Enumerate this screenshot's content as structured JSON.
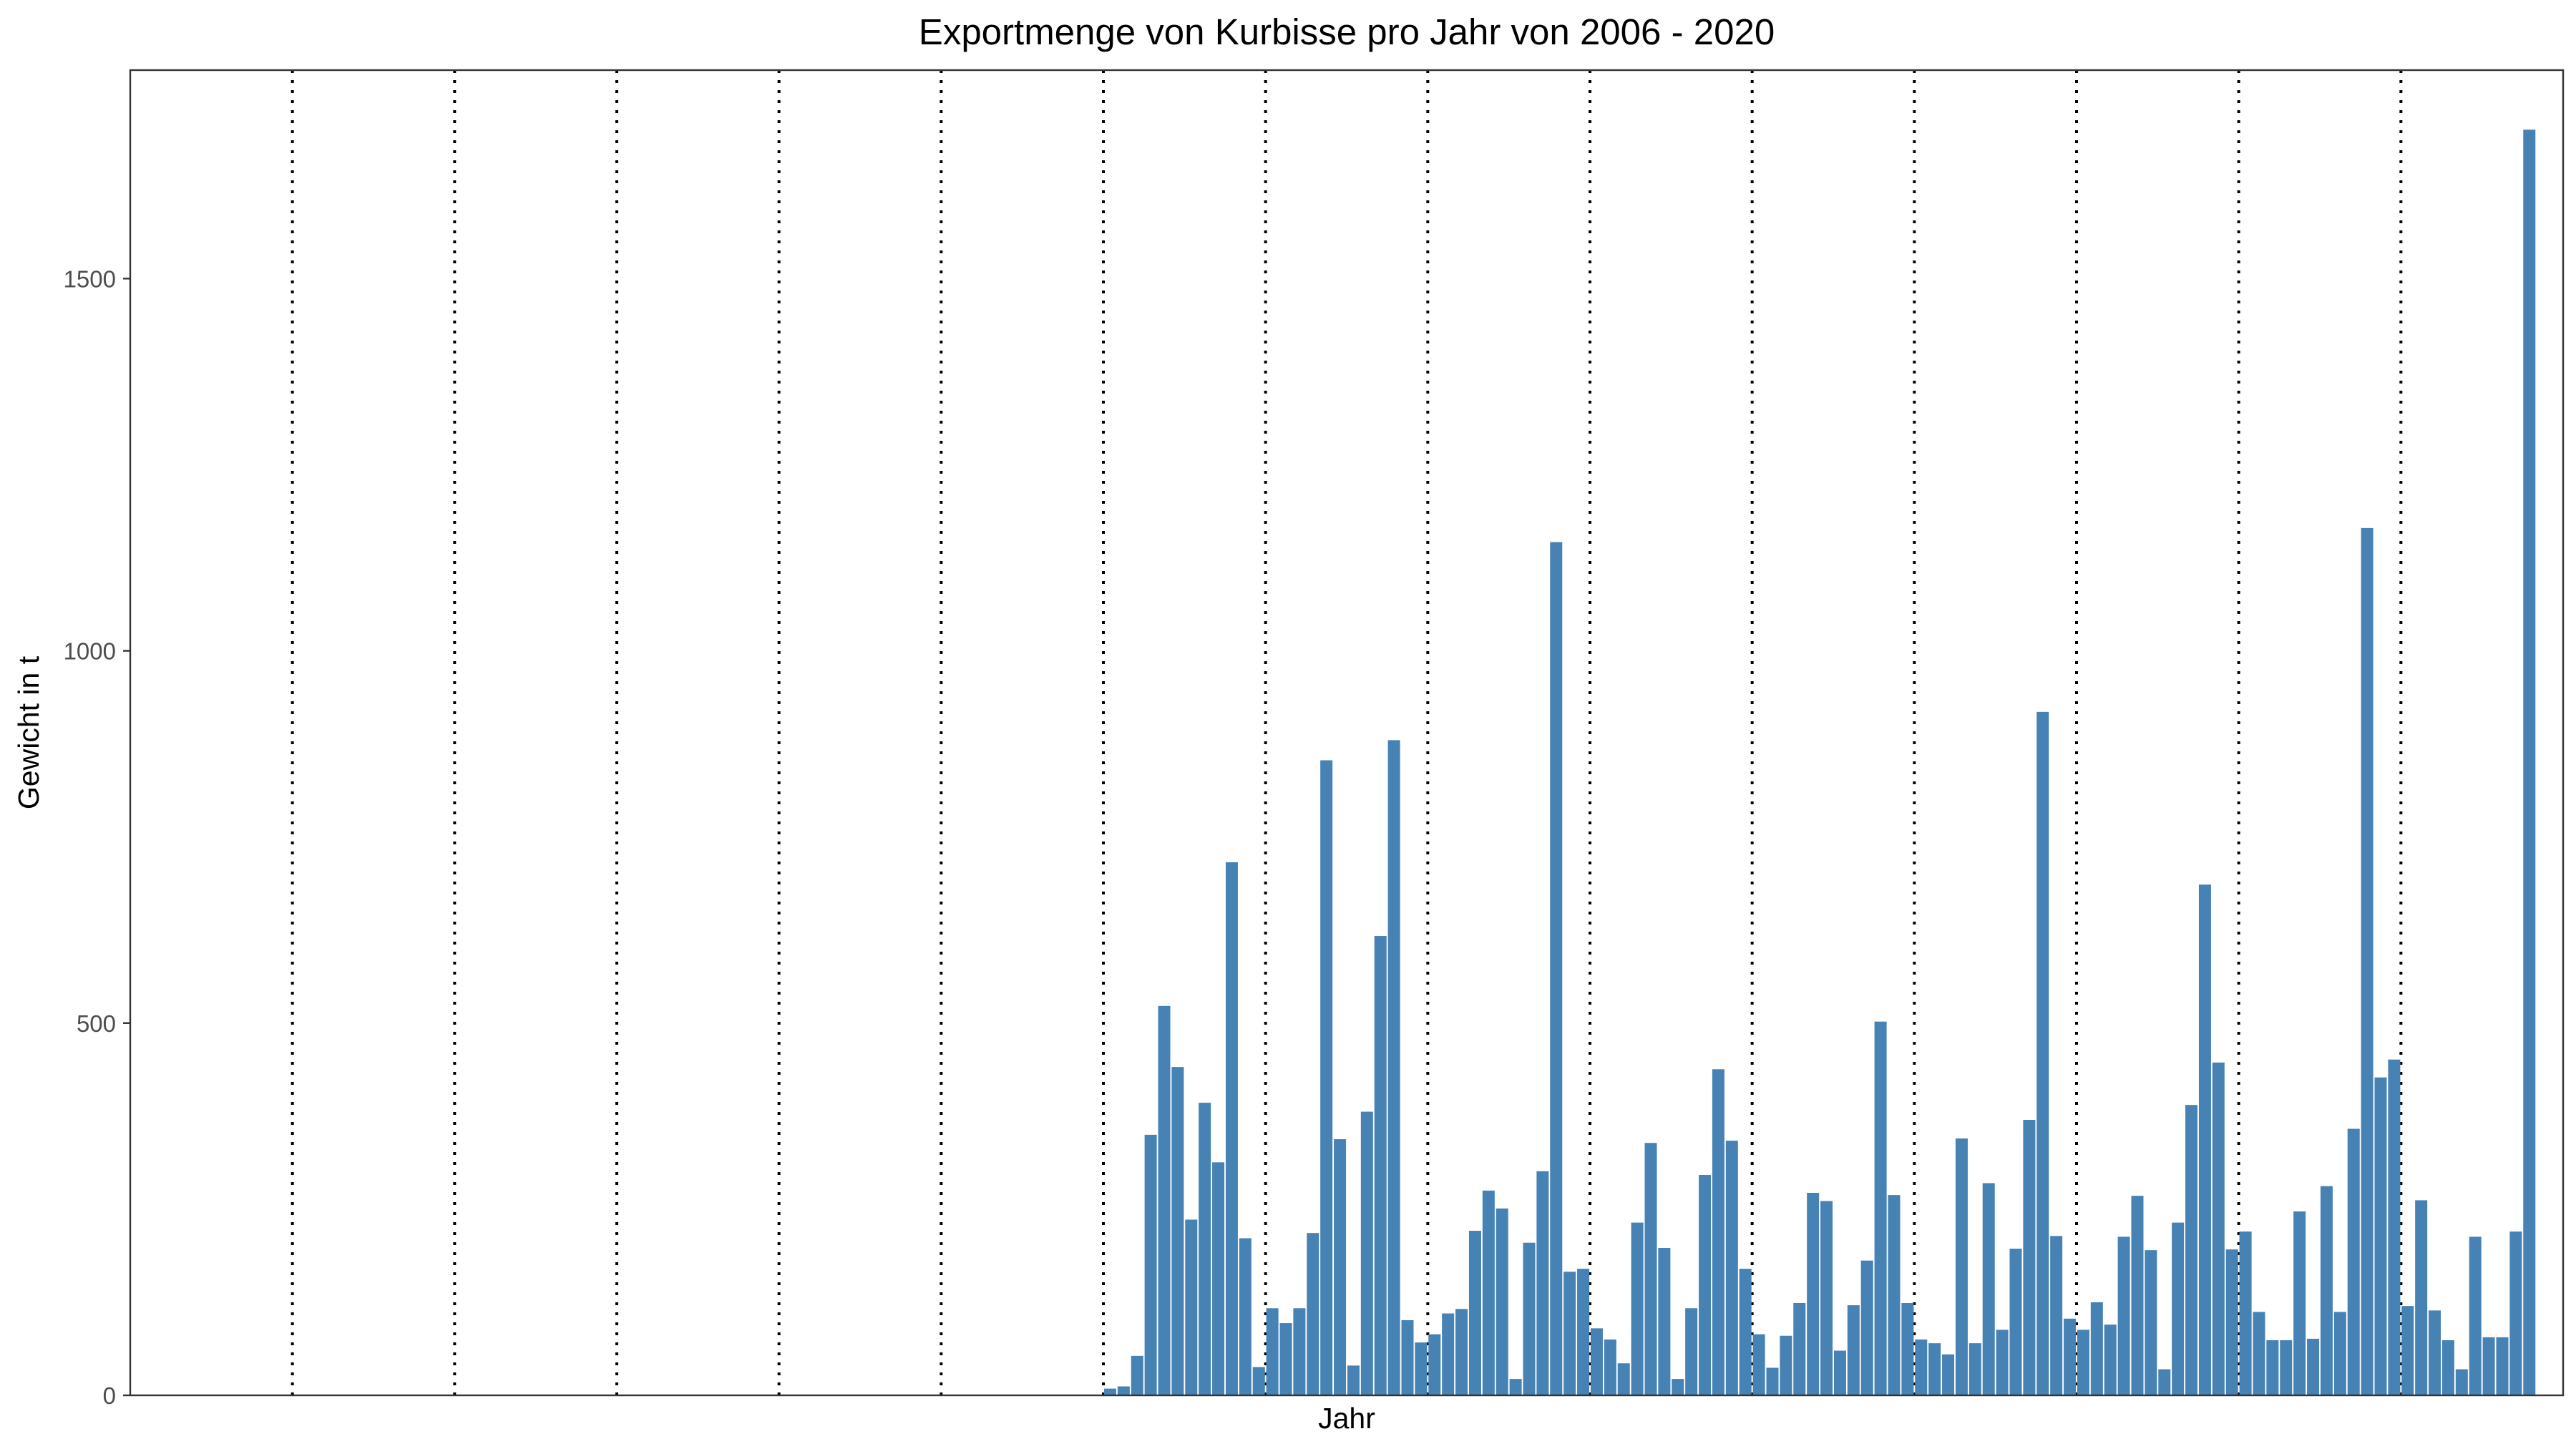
{
  "chart_data": {
    "type": "bar",
    "title": "Exportmenge von Kurbisse pro Jahr von 2006 - 2020",
    "xlabel": "Jahr",
    "ylabel": "Gewicht in t",
    "ylim": [
      0,
      1780
    ],
    "yticks": [
      0,
      500,
      1000,
      1500
    ],
    "x_slots": 180,
    "grid": false,
    "x_tick_labels": false,
    "year_separators_after_month": [
      12,
      24,
      36,
      48,
      60,
      72,
      84,
      96,
      108,
      120,
      132,
      144,
      156,
      168
    ],
    "bar_color": "#4682B4",
    "year_separator_color": "#000000",
    "first_bar_month": 73,
    "series": [
      {
        "values": [
          9,
          12,
          53,
          350,
          523,
          441,
          236,
          393,
          313,
          716,
          211,
          38,
          117,
          97,
          117,
          218,
          853,
          344,
          40,
          381,
          617,
          880,
          101,
          71,
          82,
          110,
          116,
          221,
          275,
          251,
          22,
          205,
          301,
          1146,
          166,
          170,
          90,
          75,
          43,
          232,
          339,
          198,
          22,
          117,
          296,
          438,
          342,
          170,
          82,
          37,
          80,
          124,
          272,
          261,
          60,
          121,
          181,
          502,
          269,
          124,
          75,
          70,
          55,
          345,
          70,
          285,
          88,
          197,
          370,
          918,
          214,
          103,
          88,
          125,
          95,
          213,
          268,
          195,
          35,
          232,
          390,
          686,
          447,
          196,
          220,
          112,
          74,
          74,
          247,
          76,
          281,
          112,
          358,
          1165,
          427,
          451,
          120,
          262,
          114,
          74,
          35,
          213,
          78,
          78,
          220,
          1700
        ]
      }
    ]
  }
}
